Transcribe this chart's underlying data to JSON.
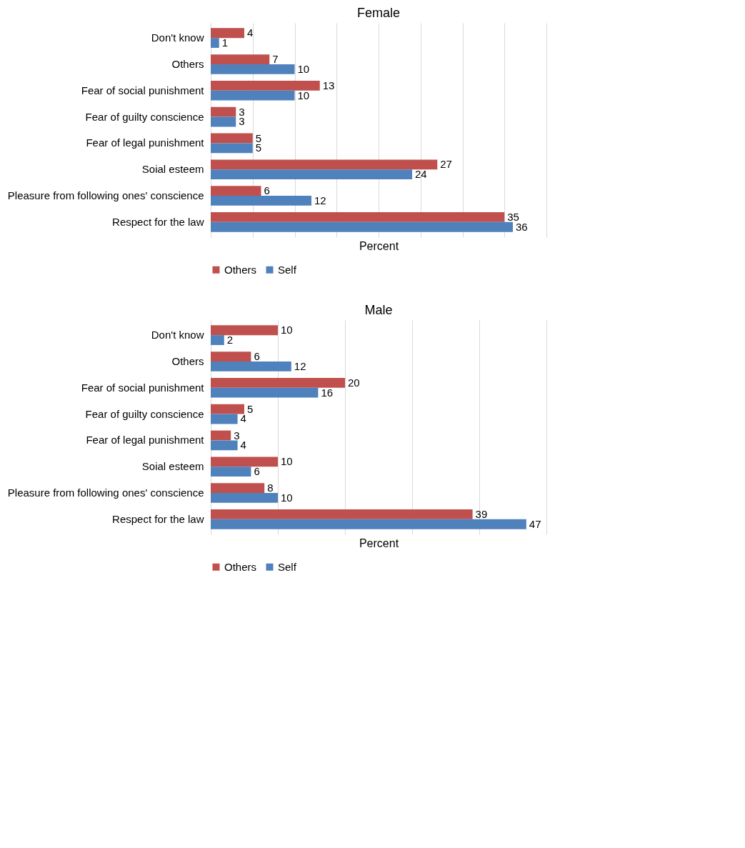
{
  "chart_data": [
    {
      "type": "bar",
      "orientation": "horizontal",
      "title": "Female",
      "xlabel": "Percent",
      "categories": [
        "Don't know",
        "Others",
        "Fear of social punishment",
        "Fear of guilty conscience",
        "Fear of legal punishment",
        "Soial esteem",
        "Pleasure from following ones' conscience",
        "Respect for the law"
      ],
      "series": [
        {
          "name": "Others",
          "color": "#c0504d",
          "values": [
            4,
            7,
            13,
            3,
            5,
            27,
            6,
            35
          ]
        },
        {
          "name": "Self",
          "color": "#4f81bd",
          "values": [
            1,
            10,
            10,
            3,
            5,
            24,
            12,
            36
          ]
        }
      ],
      "xlim": [
        0,
        40
      ],
      "xticks": [
        {
          "value": 0,
          "label": null
        },
        {
          "value": 5,
          "label": null
        },
        {
          "value": 10,
          "label": null
        },
        {
          "value": 15,
          "label": null
        },
        {
          "value": 20,
          "label": null
        },
        {
          "value": 25,
          "label": null
        },
        {
          "value": 30,
          "label": null
        },
        {
          "value": 35,
          "label": null
        },
        {
          "value": 40,
          "label": null
        }
      ],
      "grid": "x",
      "legend": "bottom",
      "data_labels": true,
      "tick_labels": "y"
    },
    {
      "type": "bar",
      "orientation": "horizontal",
      "title": "Male",
      "xlabel": "Percent",
      "categories": [
        "Don't know",
        "Others",
        "Fear of social punishment",
        "Fear of guilty conscience",
        "Fear of legal punishment",
        "Soial esteem",
        "Pleasure from following ones' conscience",
        "Respect for the law"
      ],
      "series": [
        {
          "name": "Others",
          "color": "#c0504d",
          "values": [
            10,
            6,
            20,
            5,
            3,
            10,
            8,
            39
          ]
        },
        {
          "name": "Self",
          "color": "#4f81bd",
          "values": [
            2,
            12,
            16,
            4,
            4,
            6,
            10,
            47
          ]
        }
      ],
      "xlim": [
        0,
        50
      ],
      "xticks": [
        {
          "value": 0,
          "label": null
        },
        {
          "value": 10,
          "label": null
        },
        {
          "value": 20,
          "label": null
        },
        {
          "value": 30,
          "label": null
        },
        {
          "value": 40,
          "label": null
        },
        {
          "value": 50,
          "label": null
        }
      ],
      "grid": "x",
      "legend": "bottom",
      "data_labels": true,
      "tick_labels": "y"
    }
  ]
}
